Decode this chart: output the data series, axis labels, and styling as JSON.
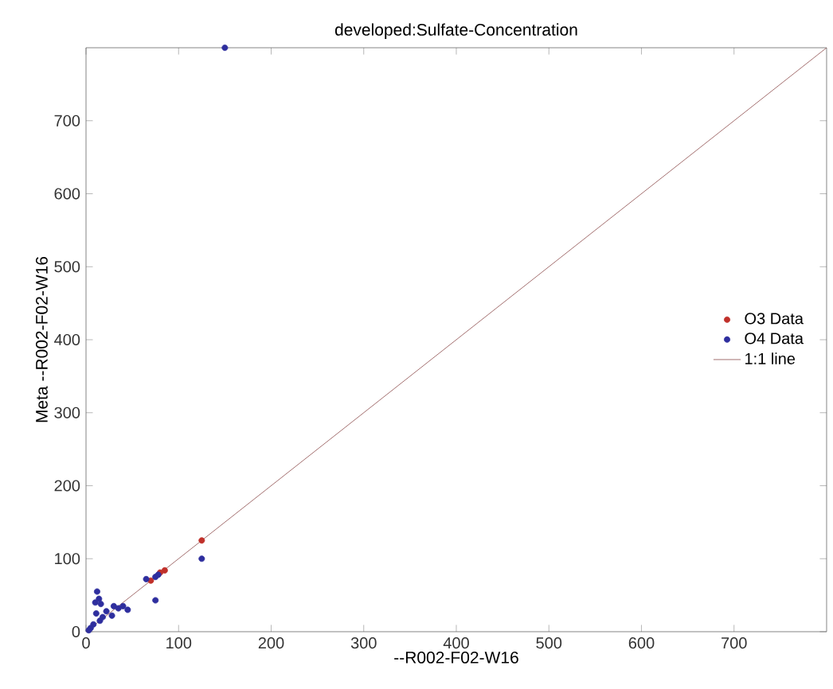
{
  "chart_data": {
    "type": "scatter",
    "title": "developed:Sulfate-Concentration",
    "xlabel": "--R002-F02-W16",
    "ylabel": "Meta --R002-F02-W16",
    "xlim": [
      0,
      800
    ],
    "ylim": [
      0,
      800
    ],
    "xticks": [
      0,
      100,
      200,
      300,
      400,
      500,
      600,
      700
    ],
    "yticks": [
      0,
      100,
      200,
      300,
      400,
      500,
      600,
      700
    ],
    "grid": false,
    "legend": "right",
    "series": [
      {
        "name": "O3 Data",
        "color": "#c0302a",
        "marker": "circle",
        "x": [
          125,
          85,
          80,
          70
        ],
        "values": [
          125,
          84,
          81,
          70
        ]
      },
      {
        "name": "O4 Data",
        "color": "#2e2e9e",
        "marker": "circle",
        "x": [
          150,
          125,
          75,
          65,
          75,
          78,
          45,
          12,
          10,
          14,
          30,
          35,
          18,
          22,
          15,
          8,
          5,
          3,
          28,
          40,
          11,
          16
        ],
        "values": [
          800,
          100,
          43,
          72,
          75,
          78,
          30,
          55,
          40,
          45,
          35,
          32,
          20,
          28,
          15,
          10,
          5,
          2,
          22,
          35,
          25,
          38
        ]
      },
      {
        "name": "1:1 line",
        "type": "line",
        "color": "#8b4a4a",
        "x": [
          0,
          800
        ],
        "values": [
          0,
          800
        ]
      }
    ]
  }
}
